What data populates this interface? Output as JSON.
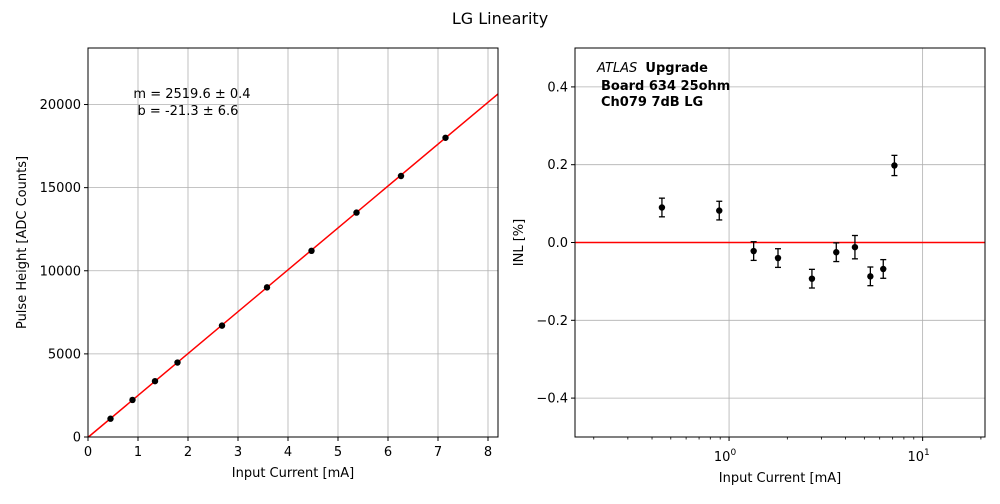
{
  "figure": {
    "title": "LG Linearity"
  },
  "chart_data": [
    {
      "type": "scatter",
      "title": "",
      "xlabel": "Input Current [mA]",
      "ylabel": "Pulse Height [ADC Counts]",
      "xlim": [
        0,
        8.2
      ],
      "ylim": [
        0,
        23400
      ],
      "xticks": [
        0,
        1,
        2,
        3,
        4,
        5,
        6,
        7,
        8
      ],
      "yticks": [
        0,
        5000,
        10000,
        15000,
        20000
      ],
      "grid": true,
      "x": [
        0.45,
        0.89,
        1.34,
        1.79,
        2.68,
        3.58,
        4.47,
        5.37,
        6.26,
        7.15
      ],
      "y": [
        1100,
        2230,
        3360,
        4480,
        6700,
        9000,
        11200,
        13500,
        15700,
        18000
      ],
      "marker_color": "#000000",
      "fit": {
        "slope": 2519.6,
        "intercept": -21.3,
        "color": "#ff0000"
      },
      "annotation": {
        "line1": "m = 2519.6 ± 0.4",
        "line2": "b = -21.3 ± 6.6"
      }
    },
    {
      "type": "scatter",
      "title": "",
      "xlabel": "Input Current [mA]",
      "ylabel": "INL [%]",
      "xscale": "log",
      "xlim": [
        0.16,
        21
      ],
      "ylim": [
        -0.5,
        0.5
      ],
      "xticks": [
        {
          "value": 1,
          "base": "10",
          "exp": "0"
        },
        {
          "value": 10,
          "base": "10",
          "exp": "1"
        }
      ],
      "yticks": [
        {
          "value": -0.4,
          "label": "−0.4"
        },
        {
          "value": -0.2,
          "label": "−0.2"
        },
        {
          "value": 0.0,
          "label": "0.0"
        },
        {
          "value": 0.2,
          "label": "0.2"
        },
        {
          "value": 0.4,
          "label": "0.4"
        }
      ],
      "grid": true,
      "x": [
        0.45,
        0.89,
        1.34,
        1.79,
        2.68,
        3.58,
        4.47,
        5.37,
        6.26,
        7.15
      ],
      "y": [
        0.09,
        0.082,
        -0.022,
        -0.04,
        -0.093,
        -0.025,
        -0.012,
        -0.087,
        -0.068,
        0.198
      ],
      "yerr": [
        0.024,
        0.024,
        0.024,
        0.024,
        0.024,
        0.024,
        0.03,
        0.024,
        0.024,
        0.026
      ],
      "reference_line": {
        "y": 0,
        "color": "#ff0000"
      },
      "marker_color": "#000000",
      "annotation": {
        "experiment": "ATLAS",
        "experiment_suffix": "Upgrade",
        "line2": "Board 634 25ohm",
        "line3": "Ch079 7dB LG"
      }
    }
  ]
}
